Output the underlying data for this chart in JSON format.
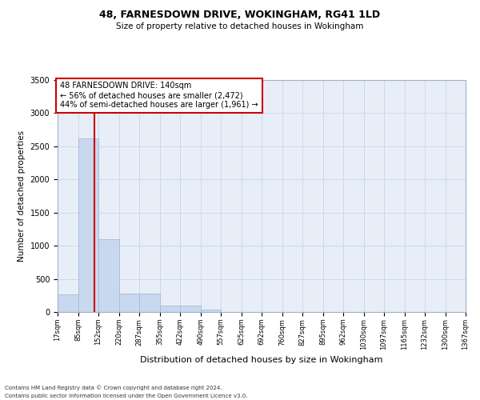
{
  "title1": "48, FARNESDOWN DRIVE, WOKINGHAM, RG41 1LD",
  "title2": "Size of property relative to detached houses in Wokingham",
  "xlabel": "Distribution of detached houses by size in Wokingham",
  "ylabel": "Number of detached properties",
  "footnote1": "Contains HM Land Registry data © Crown copyright and database right 2024.",
  "footnote2": "Contains public sector information licensed under the Open Government Licence v3.0.",
  "annotation_line1": "48 FARNESDOWN DRIVE: 140sqm",
  "annotation_line2": "← 56% of detached houses are smaller (2,472)",
  "annotation_line3": "44% of semi-detached houses are larger (1,961) →",
  "property_size": 140,
  "bin_edges": [
    17,
    85,
    152,
    220,
    287,
    355,
    422,
    490,
    557,
    625,
    692,
    760,
    827,
    895,
    962,
    1030,
    1097,
    1165,
    1232,
    1300,
    1367
  ],
  "bin_counts": [
    260,
    2620,
    1100,
    280,
    280,
    100,
    100,
    40,
    0,
    0,
    0,
    0,
    0,
    0,
    0,
    0,
    0,
    0,
    0,
    0
  ],
  "bar_color": "#c8d8ee",
  "bar_edge_color": "#a8bcd8",
  "vline_color": "#cc0000",
  "annotation_box_color": "#cc0000",
  "grid_color": "#ccd8e8",
  "background_color": "#e8eef8",
  "ylim": [
    0,
    3500
  ],
  "yticks": [
    0,
    500,
    1000,
    1500,
    2000,
    2500,
    3000,
    3500
  ]
}
